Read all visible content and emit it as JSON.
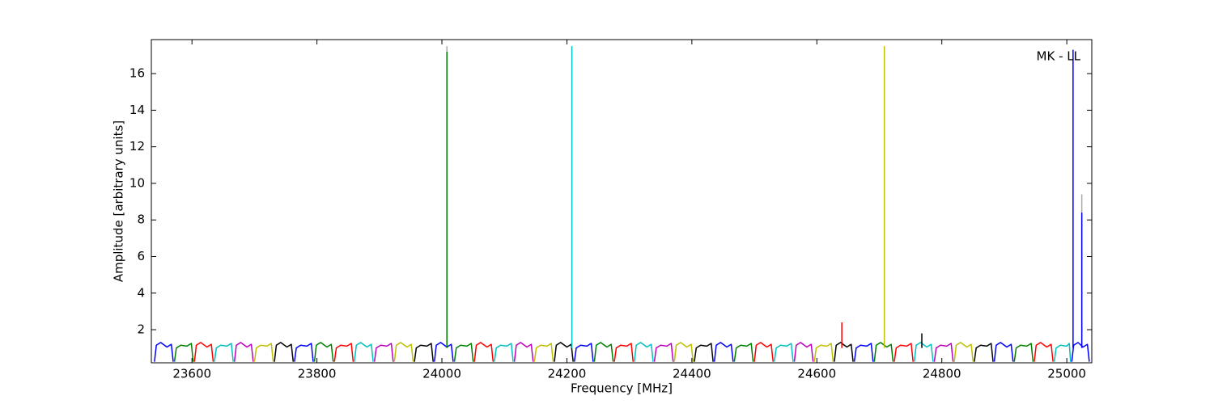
{
  "chart_data": {
    "type": "line",
    "xlabel": "Frequency [MHz]",
    "ylabel": "Amplitude [arbitrary units]",
    "annotation": "MK - LL",
    "xlim": [
      23535,
      25040
    ],
    "ylim": [
      0.19,
      17.86
    ],
    "xticks": [
      23600,
      23800,
      24000,
      24200,
      24400,
      24600,
      24800,
      25000
    ],
    "yticks": [
      2,
      4,
      6,
      8,
      10,
      12,
      14,
      16
    ],
    "lines": [
      {
        "color": "#aaaaaa",
        "x": [
          24008,
          24008
        ],
        "values": [
          1.0,
          17.5
        ]
      },
      {
        "color": "#aaaaaa",
        "x": [
          25024,
          25024
        ],
        "values": [
          1.0,
          9.4
        ]
      },
      {
        "color": "#0000ff",
        "x": [
          23540,
          23543,
          23550,
          23560,
          23567,
          23570
        ],
        "values": [
          0.25,
          1.15,
          1.3,
          1.05,
          1.2,
          0.25
        ]
      },
      {
        "color": "#008000",
        "x": [
          23572,
          23575,
          23582,
          23592,
          23599,
          23602
        ],
        "values": [
          0.25,
          1.0,
          1.15,
          1.1,
          1.25,
          0.25
        ]
      },
      {
        "color": "#ff0000",
        "x": [
          23604,
          23607,
          23614,
          23624,
          23631,
          23634
        ],
        "values": [
          0.25,
          1.15,
          1.3,
          1.05,
          1.2,
          0.25
        ]
      },
      {
        "color": "#00bfbf",
        "x": [
          23636,
          23639,
          23646,
          23656,
          23663,
          23666
        ],
        "values": [
          0.25,
          1.0,
          1.15,
          1.1,
          1.25,
          0.25
        ]
      },
      {
        "color": "#bf00bf",
        "x": [
          23668,
          23671,
          23678,
          23688,
          23695,
          23698
        ],
        "values": [
          0.25,
          1.15,
          1.3,
          1.05,
          1.2,
          0.25
        ]
      },
      {
        "color": "#bfbf00",
        "x": [
          23700,
          23703,
          23710,
          23720,
          23727,
          23730
        ],
        "values": [
          0.25,
          1.0,
          1.15,
          1.1,
          1.25,
          0.25
        ]
      },
      {
        "color": "#000000",
        "x": [
          23732,
          23735,
          23742,
          23752,
          23759,
          23762
        ],
        "values": [
          0.25,
          1.15,
          1.3,
          1.05,
          1.2,
          0.25
        ]
      },
      {
        "color": "#0000ff",
        "x": [
          23764,
          23767,
          23774,
          23784,
          23791,
          23794
        ],
        "values": [
          0.25,
          1.0,
          1.15,
          1.1,
          1.25,
          0.25
        ]
      },
      {
        "color": "#008000",
        "x": [
          23796,
          23799,
          23806,
          23816,
          23823,
          23826
        ],
        "values": [
          0.25,
          1.15,
          1.3,
          1.05,
          1.2,
          0.25
        ]
      },
      {
        "color": "#ff0000",
        "x": [
          23828,
          23831,
          23838,
          23848,
          23855,
          23858
        ],
        "values": [
          0.25,
          1.0,
          1.15,
          1.1,
          1.25,
          0.25
        ]
      },
      {
        "color": "#00bfbf",
        "x": [
          23860,
          23863,
          23870,
          23880,
          23887,
          23890
        ],
        "values": [
          0.25,
          1.15,
          1.3,
          1.05,
          1.2,
          0.25
        ]
      },
      {
        "color": "#bf00bf",
        "x": [
          23892,
          23895,
          23902,
          23912,
          23919,
          23922
        ],
        "values": [
          0.25,
          1.0,
          1.15,
          1.1,
          1.25,
          0.25
        ]
      },
      {
        "color": "#bfbf00",
        "x": [
          23924,
          23927,
          23934,
          23944,
          23951,
          23954
        ],
        "values": [
          0.25,
          1.15,
          1.3,
          1.05,
          1.2,
          0.25
        ]
      },
      {
        "color": "#000000",
        "x": [
          23956,
          23959,
          23966,
          23976,
          23983,
          23986
        ],
        "values": [
          0.25,
          1.0,
          1.15,
          1.1,
          1.25,
          0.25
        ]
      },
      {
        "color": "#0000ff",
        "x": [
          23988,
          23991,
          23998,
          24008,
          24015,
          24018
        ],
        "values": [
          0.25,
          1.15,
          1.3,
          1.05,
          1.2,
          0.25
        ]
      },
      {
        "color": "#008000",
        "x": [
          24020,
          24023,
          24030,
          24040,
          24047,
          24050
        ],
        "values": [
          0.25,
          1.0,
          1.15,
          1.1,
          1.25,
          0.25
        ]
      },
      {
        "color": "#ff0000",
        "x": [
          24052,
          24055,
          24062,
          24072,
          24079,
          24082
        ],
        "values": [
          0.25,
          1.15,
          1.3,
          1.05,
          1.2,
          0.25
        ]
      },
      {
        "color": "#00bfbf",
        "x": [
          24084,
          24087,
          24094,
          24104,
          24111,
          24114
        ],
        "values": [
          0.25,
          1.0,
          1.15,
          1.1,
          1.25,
          0.25
        ]
      },
      {
        "color": "#bf00bf",
        "x": [
          24116,
          24119,
          24126,
          24136,
          24143,
          24146
        ],
        "values": [
          0.25,
          1.15,
          1.3,
          1.05,
          1.2,
          0.25
        ]
      },
      {
        "color": "#bfbf00",
        "x": [
          24148,
          24151,
          24158,
          24168,
          24175,
          24178
        ],
        "values": [
          0.25,
          1.0,
          1.15,
          1.1,
          1.25,
          0.25
        ]
      },
      {
        "color": "#000000",
        "x": [
          24180,
          24183,
          24190,
          24200,
          24207,
          24210
        ],
        "values": [
          0.25,
          1.15,
          1.3,
          1.05,
          1.2,
          0.25
        ]
      },
      {
        "color": "#0000ff",
        "x": [
          24212,
          24215,
          24222,
          24232,
          24239,
          24242
        ],
        "values": [
          0.25,
          1.0,
          1.15,
          1.1,
          1.25,
          0.25
        ]
      },
      {
        "color": "#008000",
        "x": [
          24244,
          24247,
          24254,
          24264,
          24271,
          24274
        ],
        "values": [
          0.25,
          1.15,
          1.3,
          1.05,
          1.2,
          0.25
        ]
      },
      {
        "color": "#ff0000",
        "x": [
          24276,
          24279,
          24286,
          24296,
          24303,
          24306
        ],
        "values": [
          0.25,
          1.0,
          1.15,
          1.1,
          1.25,
          0.25
        ]
      },
      {
        "color": "#00bfbf",
        "x": [
          24308,
          24311,
          24318,
          24328,
          24335,
          24338
        ],
        "values": [
          0.25,
          1.15,
          1.3,
          1.05,
          1.2,
          0.25
        ]
      },
      {
        "color": "#bf00bf",
        "x": [
          24340,
          24343,
          24350,
          24360,
          24367,
          24370
        ],
        "values": [
          0.25,
          1.0,
          1.15,
          1.1,
          1.25,
          0.25
        ]
      },
      {
        "color": "#bfbf00",
        "x": [
          24372,
          24375,
          24382,
          24392,
          24399,
          24402
        ],
        "values": [
          0.25,
          1.15,
          1.3,
          1.05,
          1.2,
          0.25
        ]
      },
      {
        "color": "#000000",
        "x": [
          24404,
          24407,
          24414,
          24424,
          24431,
          24434
        ],
        "values": [
          0.25,
          1.0,
          1.15,
          1.1,
          1.25,
          0.25
        ]
      },
      {
        "color": "#0000ff",
        "x": [
          24436,
          24439,
          24446,
          24456,
          24463,
          24466
        ],
        "values": [
          0.25,
          1.15,
          1.3,
          1.05,
          1.2,
          0.25
        ]
      },
      {
        "color": "#008000",
        "x": [
          24468,
          24471,
          24478,
          24488,
          24495,
          24498
        ],
        "values": [
          0.25,
          1.0,
          1.15,
          1.1,
          1.25,
          0.25
        ]
      },
      {
        "color": "#ff0000",
        "x": [
          24500,
          24503,
          24510,
          24520,
          24527,
          24530
        ],
        "values": [
          0.25,
          1.15,
          1.3,
          1.05,
          1.2,
          0.25
        ]
      },
      {
        "color": "#00bfbf",
        "x": [
          24532,
          24535,
          24542,
          24552,
          24559,
          24562
        ],
        "values": [
          0.25,
          1.0,
          1.15,
          1.1,
          1.25,
          0.25
        ]
      },
      {
        "color": "#bf00bf",
        "x": [
          24564,
          24567,
          24574,
          24584,
          24591,
          24594
        ],
        "values": [
          0.25,
          1.15,
          1.3,
          1.05,
          1.2,
          0.25
        ]
      },
      {
        "color": "#bfbf00",
        "x": [
          24596,
          24599,
          24606,
          24616,
          24623,
          24626
        ],
        "values": [
          0.25,
          1.0,
          1.15,
          1.1,
          1.25,
          0.25
        ]
      },
      {
        "color": "#000000",
        "x": [
          24628,
          24631,
          24638,
          24648,
          24655,
          24658
        ],
        "values": [
          0.25,
          1.15,
          1.3,
          1.05,
          1.2,
          0.25
        ]
      },
      {
        "color": "#0000ff",
        "x": [
          24660,
          24663,
          24670,
          24680,
          24687,
          24690
        ],
        "values": [
          0.25,
          1.0,
          1.15,
          1.1,
          1.25,
          0.25
        ]
      },
      {
        "color": "#008000",
        "x": [
          24692,
          24695,
          24702,
          24712,
          24719,
          24722
        ],
        "values": [
          0.25,
          1.15,
          1.3,
          1.05,
          1.2,
          0.25
        ]
      },
      {
        "color": "#ff0000",
        "x": [
          24724,
          24727,
          24734,
          24744,
          24751,
          24754
        ],
        "values": [
          0.25,
          1.0,
          1.15,
          1.1,
          1.25,
          0.25
        ]
      },
      {
        "color": "#00bfbf",
        "x": [
          24756,
          24759,
          24766,
          24776,
          24783,
          24786
        ],
        "values": [
          0.25,
          1.15,
          1.3,
          1.05,
          1.2,
          0.25
        ]
      },
      {
        "color": "#bf00bf",
        "x": [
          24788,
          24791,
          24798,
          24808,
          24815,
          24818
        ],
        "values": [
          0.25,
          1.0,
          1.15,
          1.1,
          1.25,
          0.25
        ]
      },
      {
        "color": "#bfbf00",
        "x": [
          24820,
          24823,
          24830,
          24840,
          24847,
          24850
        ],
        "values": [
          0.25,
          1.15,
          1.3,
          1.05,
          1.2,
          0.25
        ]
      },
      {
        "color": "#000000",
        "x": [
          24852,
          24855,
          24862,
          24872,
          24879,
          24882
        ],
        "values": [
          0.25,
          1.0,
          1.15,
          1.1,
          1.25,
          0.25
        ]
      },
      {
        "color": "#0000ff",
        "x": [
          24884,
          24887,
          24894,
          24904,
          24911,
          24914
        ],
        "values": [
          0.25,
          1.15,
          1.3,
          1.05,
          1.2,
          0.25
        ]
      },
      {
        "color": "#008000",
        "x": [
          24916,
          24919,
          24926,
          24936,
          24943,
          24946
        ],
        "values": [
          0.25,
          1.0,
          1.15,
          1.1,
          1.25,
          0.25
        ]
      },
      {
        "color": "#ff0000",
        "x": [
          24948,
          24951,
          24958,
          24968,
          24975,
          24978
        ],
        "values": [
          0.25,
          1.15,
          1.3,
          1.05,
          1.2,
          0.25
        ]
      },
      {
        "color": "#00bfbf",
        "x": [
          24980,
          24983,
          24990,
          25000,
          25004,
          25006
        ],
        "values": [
          0.25,
          1.0,
          1.15,
          1.1,
          1.25,
          0.25
        ]
      },
      {
        "color": "#0000ff",
        "x": [
          25008,
          25011,
          25018,
          25026,
          25033,
          25036
        ],
        "values": [
          0.25,
          1.15,
          1.3,
          1.05,
          1.2,
          0.25
        ]
      },
      {
        "color": "#008000",
        "x": [
          24008,
          24008
        ],
        "values": [
          1.0,
          17.2
        ]
      },
      {
        "color": "#00bfbf",
        "x": [
          24208,
          24208
        ],
        "values": [
          1.0,
          17.5
        ]
      },
      {
        "color": "#ff0000",
        "x": [
          24640,
          24640
        ],
        "values": [
          1.0,
          2.4
        ]
      },
      {
        "color": "#bfbf00",
        "x": [
          24708,
          24708
        ],
        "values": [
          1.0,
          17.5
        ]
      },
      {
        "color": "#000000",
        "x": [
          24768,
          24768
        ],
        "values": [
          1.0,
          1.8
        ]
      },
      {
        "color": "#0000ff",
        "x": [
          25010,
          25010
        ],
        "values": [
          1.0,
          17.3
        ]
      },
      {
        "color": "#0000ff",
        "x": [
          25024,
          25024
        ],
        "values": [
          1.0,
          8.4
        ]
      }
    ]
  }
}
